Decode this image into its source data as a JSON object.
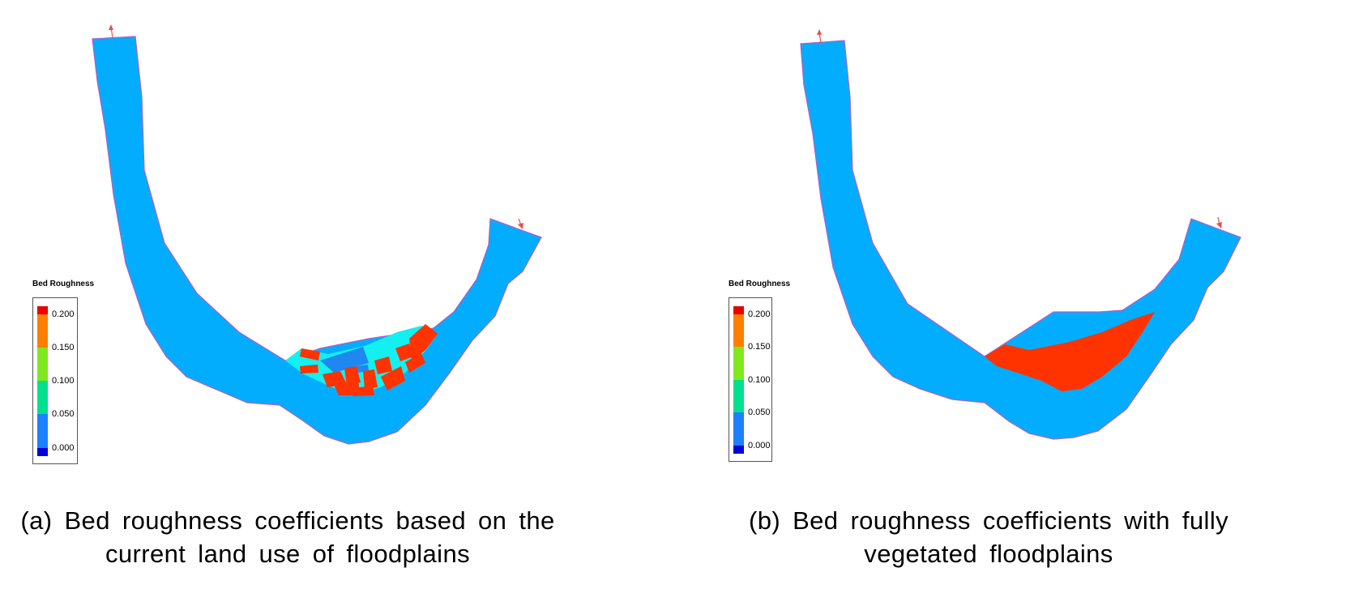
{
  "panels": [
    {
      "caption_line1": "(a) Bed roughness coefficients based on the",
      "caption_line2": "current land use of floodplains",
      "legend": {
        "title": "Bed Roughness",
        "labels": [
          "0.200",
          "0.150",
          "0.100",
          "0.050",
          "0.000"
        ]
      }
    },
    {
      "caption_line1": "(b) Bed roughness coefficients with fully",
      "caption_line2": "vegetated floodplains",
      "legend": {
        "title": "Bed Roughness",
        "labels": [
          "0.200",
          "0.150",
          "0.100",
          "0.050",
          "0.000"
        ]
      }
    }
  ],
  "colors": {
    "channel": "#03adfd",
    "channel_outline": "#b05ec8",
    "floodplain_cyan": "#14efef",
    "floodplain_blue": "#1e88f0",
    "vegetation_red": "#ff3300",
    "arrow": "#e8504a",
    "legend_scale": [
      "#e80000",
      "#ff7f00",
      "#7fe81e",
      "#00e090",
      "#1e7fff",
      "#0000d8"
    ]
  }
}
